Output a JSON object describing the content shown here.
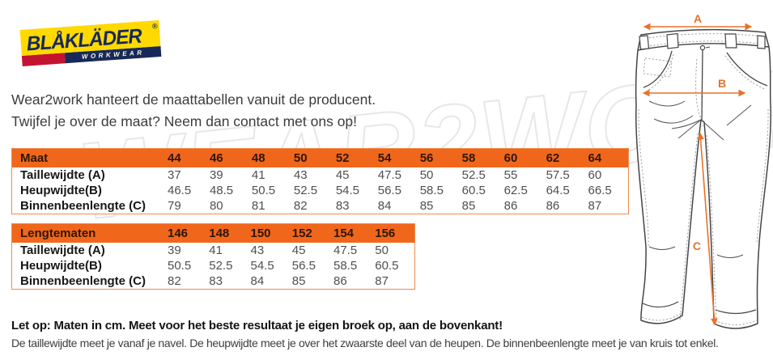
{
  "logo": {
    "brand": "BLÅKLÄDER",
    "registered": "®",
    "sub": "WORKWEAR"
  },
  "watermark": "WEAR2WORK.NL",
  "intro": {
    "line1": "Wear2work hanteert de maattabellen vanuit de producent.",
    "line2": "Twijfel je over de maat? Neem dan contact met ons op!"
  },
  "tables": [
    {
      "header": [
        "Maat",
        "44",
        "46",
        "48",
        "50",
        "52",
        "54",
        "56",
        "58",
        "60",
        "62",
        "64"
      ],
      "rows": [
        {
          "label": "Taillewijdte (A)",
          "values": [
            "37",
            "39",
            "41",
            "43",
            "45",
            "47.5",
            "50",
            "52.5",
            "55",
            "57.5",
            "60"
          ]
        },
        {
          "label": "Heupwijdte(B)",
          "values": [
            "46.5",
            "48.5",
            "50.5",
            "52.5",
            "54.5",
            "56.5",
            "58.5",
            "60.5",
            "62.5",
            "64.5",
            "66.5"
          ]
        },
        {
          "label": "Binnenbeenlengte (C)",
          "values": [
            "79",
            "80",
            "81",
            "82",
            "83",
            "84",
            "85",
            "85",
            "86",
            "86",
            "87"
          ]
        }
      ]
    },
    {
      "header": [
        "Lengtematen",
        "146",
        "148",
        "150",
        "152",
        "154",
        "156"
      ],
      "rows": [
        {
          "label": "Taillewijdte (A)",
          "values": [
            "39",
            "41",
            "43",
            "45",
            "47.5",
            "50"
          ]
        },
        {
          "label": "Heupwijdte(B)",
          "values": [
            "50.5",
            "52.5",
            "54.5",
            "56.5",
            "58.5",
            "60.5"
          ]
        },
        {
          "label": "Binnenbeenlengte (C)",
          "values": [
            "82",
            "83",
            "84",
            "85",
            "86",
            "87"
          ]
        }
      ]
    }
  ],
  "notes": {
    "bold": "Let op: Maten in cm. Meet voor het beste resultaat je eigen broek op, aan de bovenkant!",
    "regular": "De taillewijdte meet je vanaf je navel. De heupwijdte meet je over het zwaarste deel van de heupen. De binnenbeenlengte meet je van kruis tot enkel."
  },
  "diagram": {
    "a": "A",
    "b": "B",
    "c": "C"
  },
  "colors": {
    "table_header_orange": "#F0671C",
    "table_border_orange": "#EF8C4F",
    "arrow_orange": "#E8722C",
    "logo_yellow": "#FFD900",
    "logo_navy": "#17295A",
    "logo_red": "#C41331"
  }
}
